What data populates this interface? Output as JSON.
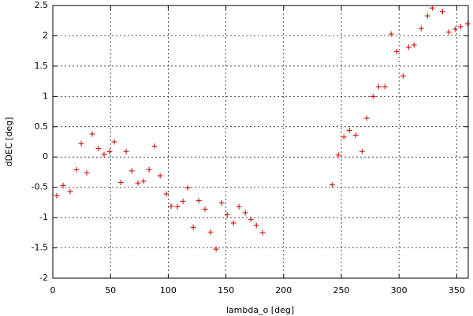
{
  "chart_data": {
    "type": "scatter",
    "xlabel": "lambda_o [deg]",
    "ylabel": "dDEC [deg]",
    "x": [
      3.4,
      8.9,
      15,
      20.5,
      24.6,
      29.4,
      34.2,
      39.6,
      44.4,
      49.2,
      53.3,
      58.8,
      63.6,
      68.4,
      73.8,
      78.6,
      83.4,
      88.2,
      93,
      98.4,
      102.5,
      108,
      112.8,
      116.9,
      121.7,
      126.5,
      131.9,
      136.7,
      141.5,
      146.3,
      151.1,
      156.5,
      161.3,
      166.8,
      171.6,
      176.4,
      181.8,
      242,
      247.4,
      252.2,
      257,
      262.5,
      268,
      272,
      277.5,
      282.3,
      287.8,
      293.2,
      298,
      303.5,
      308.3,
      313,
      319.2,
      324.7,
      328.8,
      337.7,
      343.1,
      348.6,
      353.4,
      359.5
    ],
    "values": [
      -0.64,
      -0.47,
      -0.57,
      -0.21,
      0.22,
      -0.26,
      0.38,
      0.14,
      0.04,
      0.09,
      0.25,
      -0.42,
      0.09,
      -0.23,
      -0.43,
      -0.4,
      -0.21,
      0.18,
      -0.31,
      -0.61,
      -0.81,
      -0.82,
      -0.73,
      -0.51,
      -1.16,
      -0.72,
      -0.86,
      -1.24,
      -1.52,
      -0.76,
      -0.95,
      -1.09,
      -0.82,
      -0.92,
      -1.03,
      -1.13,
      -1.25,
      -0.46,
      0.03,
      0.33,
      0.44,
      0.36,
      0.09,
      0.64,
      1.0,
      1.16,
      1.16,
      2.03,
      1.74,
      1.34,
      1.81,
      1.85,
      2.12,
      2.33,
      2.46,
      2.4,
      2.06,
      2.11,
      2.15,
      2.2
    ],
    "color": "#cc0000",
    "xlim": [
      0,
      360
    ],
    "ylim": [
      -2,
      2.5
    ],
    "xticks": [
      0,
      50,
      100,
      150,
      200,
      250,
      300,
      350
    ],
    "yticks": [
      -2,
      -1.5,
      -1,
      -0.5,
      0,
      0.5,
      1,
      1.5,
      2,
      2.5
    ],
    "grid": true
  }
}
